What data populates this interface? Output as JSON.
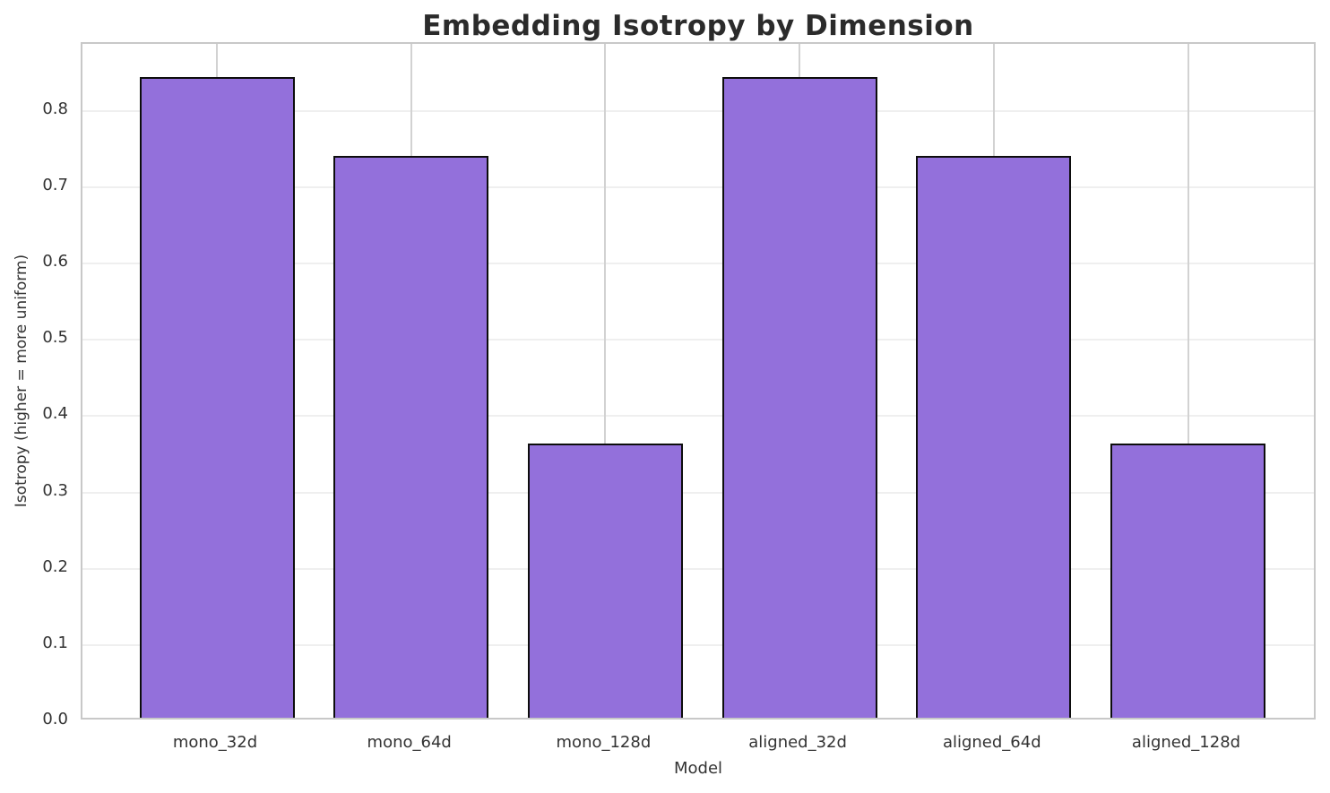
{
  "chart_data": {
    "type": "bar",
    "title": "Embedding Isotropy by Dimension",
    "xlabel": "Model",
    "ylabel": "Isotropy (higher = more uniform)",
    "categories": [
      "mono_32d",
      "mono_64d",
      "mono_128d",
      "aligned_32d",
      "aligned_64d",
      "aligned_128d"
    ],
    "values": [
      0.84,
      0.736,
      0.36,
      0.84,
      0.736,
      0.36
    ],
    "yticks": [
      0.0,
      0.1,
      0.2,
      0.3,
      0.4,
      0.5,
      0.6,
      0.7,
      0.8
    ],
    "ylim": [
      0,
      0.888
    ],
    "grid": "on",
    "legend": "none",
    "bar_color": "#9370DB",
    "bar_edge_color": "#0d0d0d",
    "grid_color_horizontal": "#efefef",
    "grid_color_vertical": "#d2d2d2",
    "spine_color": "#c8c8c8",
    "text_color": "#333333",
    "title_color": "#2b2b2b"
  }
}
